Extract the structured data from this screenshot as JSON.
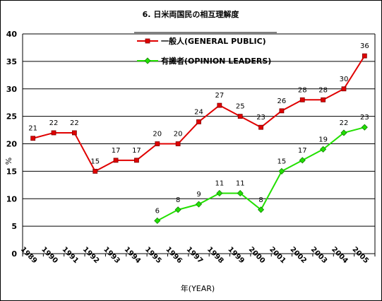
{
  "chart_data": {
    "type": "line",
    "title": "6. 日米両国民の相互理解度",
    "xlabel": "年(YEAR)",
    "ylabel": "%",
    "ylim": [
      0,
      40
    ],
    "yticks": [
      0,
      5,
      10,
      15,
      20,
      25,
      30,
      35,
      40
    ],
    "grid": "horizontal",
    "legend_position": "top-center",
    "categories": [
      "1989",
      "1990",
      "1991",
      "1992",
      "1993",
      "1994",
      "1995",
      "1996",
      "1997",
      "1998",
      "1999",
      "2000",
      "2001",
      "2002",
      "2003",
      "2004",
      "2005"
    ],
    "series": [
      {
        "name": "一般人(GENERAL PUBLIC)",
        "color": "#e00000",
        "marker": "square",
        "values": [
          21,
          22,
          22,
          15,
          17,
          17,
          20,
          20,
          24,
          27,
          25,
          23,
          26,
          28,
          28,
          30,
          36
        ]
      },
      {
        "name": "有識者(OPINION LEADERS)",
        "color": "#22e000",
        "marker": "diamond",
        "values": [
          null,
          null,
          null,
          null,
          null,
          null,
          6,
          8,
          9,
          11,
          11,
          8,
          15,
          17,
          19,
          22,
          23
        ]
      }
    ]
  }
}
